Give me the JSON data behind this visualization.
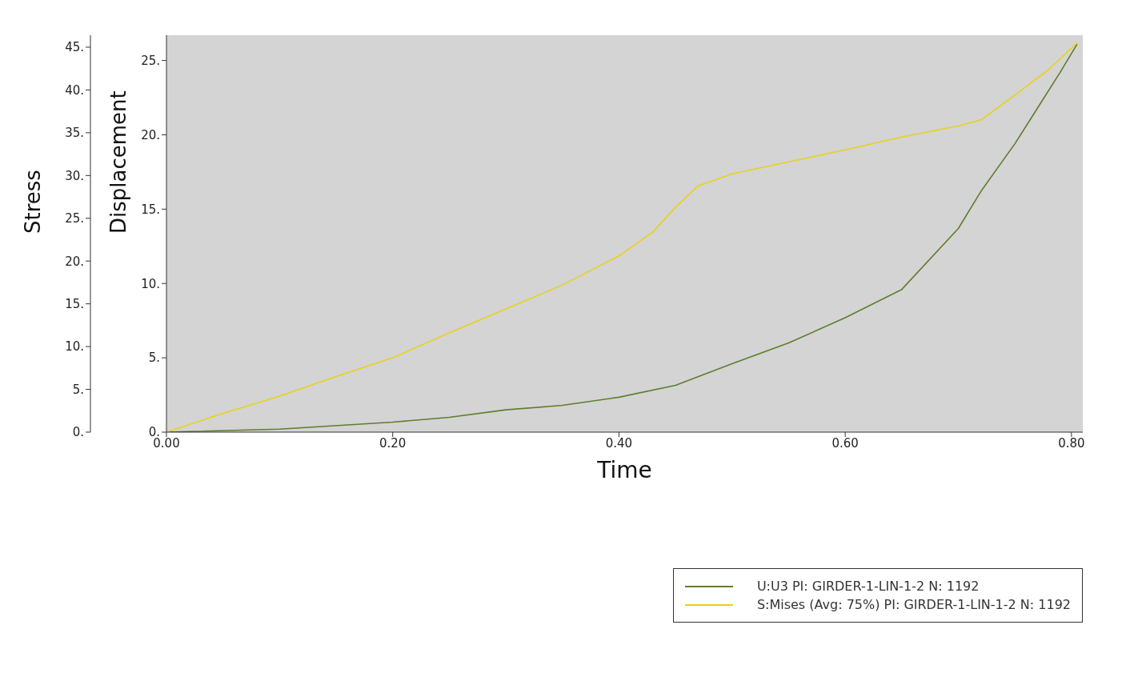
{
  "chart_data": {
    "type": "line",
    "xlabel": "Time",
    "ylabel": "Displacement",
    "y2label": "Stress",
    "xlim": [
      0,
      0.81
    ],
    "xticks": [
      {
        "value": 0,
        "label": "0.00"
      },
      {
        "value": 0.2,
        "label": "0.20"
      },
      {
        "value": 0.4,
        "label": "0.40"
      },
      {
        "value": 0.6,
        "label": "0.60"
      },
      {
        "value": 0.8,
        "label": "0.80"
      }
    ],
    "ylim": [
      0,
      26.7
    ],
    "yticks": [
      {
        "value": 0,
        "label": "0."
      },
      {
        "value": 5,
        "label": "5."
      },
      {
        "value": 10,
        "label": "10."
      },
      {
        "value": 15,
        "label": "15."
      },
      {
        "value": 20,
        "label": "20."
      },
      {
        "value": 25,
        "label": "25."
      }
    ],
    "y2lim": [
      0,
      46.4
    ],
    "y2ticks": [
      {
        "value": 0,
        "label": "0."
      },
      {
        "value": 5,
        "label": "5."
      },
      {
        "value": 10,
        "label": "10."
      },
      {
        "value": 15,
        "label": "15."
      },
      {
        "value": 20,
        "label": "20."
      },
      {
        "value": 25,
        "label": "25."
      },
      {
        "value": 30,
        "label": "30."
      },
      {
        "value": 35,
        "label": "35."
      },
      {
        "value": 40,
        "label": "40."
      },
      {
        "value": 45,
        "label": "45."
      }
    ],
    "legend": "bottom right",
    "marker": "none",
    "line_style": "solid",
    "series": [
      {
        "name": "U:U3 PI: GIRDER-1-LIN-1-2 N: 1192",
        "color": "#5e7d2e",
        "x": [
          0,
          0.1,
          0.2,
          0.25,
          0.3,
          0.35,
          0.4,
          0.45,
          0.5,
          0.55,
          0.6,
          0.65,
          0.7,
          0.72,
          0.75,
          0.77,
          0.79,
          0.805
        ],
        "values": [
          0,
          0.2,
          0.67,
          1.0,
          1.5,
          1.8,
          2.35,
          3.15,
          4.6,
          6.0,
          7.7,
          9.6,
          13.7,
          16.2,
          19.4,
          21.8,
          24.2,
          26.1
        ]
      },
      {
        "name": "S:Mises (Avg: 75%) PI: GIRDER-1-LIN-1-2 N: 1192",
        "color": "#e8d21a",
        "axis": "y2",
        "x": [
          0,
          0.05,
          0.1,
          0.15,
          0.2,
          0.25,
          0.3,
          0.35,
          0.4,
          0.43,
          0.45,
          0.47,
          0.5,
          0.55,
          0.6,
          0.65,
          0.7,
          0.72,
          0.75,
          0.78,
          0.805
        ],
        "values": [
          0,
          2.2,
          4.2,
          6.5,
          8.7,
          11.6,
          14.4,
          17.2,
          20.6,
          23.4,
          26.3,
          28.8,
          30.2,
          31.6,
          33.0,
          34.5,
          35.8,
          36.5,
          39.4,
          42.4,
          45.5
        ]
      }
    ]
  }
}
